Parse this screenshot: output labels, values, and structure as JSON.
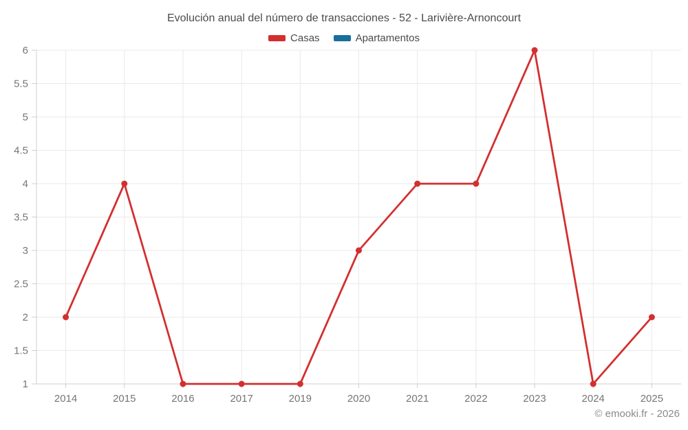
{
  "header": {
    "title": "Evolución anual del número de transacciones - 52 - Larivière-Arnoncourt"
  },
  "footer": {
    "credit": "© emooki.fr - 2026"
  },
  "colors": {
    "background": "#ffffff",
    "grid": "#e9e9e9",
    "axis": "#cfcfcf",
    "tick_label": "#757575",
    "title_text": "#4b4b4b",
    "legend_text": "#4b4b4b",
    "footer_text": "#8a8a8a",
    "casas": "#d32f2f",
    "apartamentos": "#1a6e9c"
  },
  "chart_data": {
    "type": "line",
    "title": "Evolución anual del número de transacciones - 52 - Larivière-Arnoncourt",
    "categories": [
      "2014",
      "2015",
      "2016",
      "2017",
      "2019",
      "2020",
      "2021",
      "2022",
      "2023",
      "2024",
      "2025"
    ],
    "series": [
      {
        "name": "Casas",
        "color": "#d32f2f",
        "values": [
          2,
          4,
          1,
          1,
          1,
          3,
          4,
          4,
          6,
          1,
          2
        ]
      },
      {
        "name": "Apartamentos",
        "color": "#1a6e9c",
        "values": []
      }
    ],
    "xlabel": "",
    "ylabel": "",
    "ylim": [
      1,
      6
    ],
    "y_ticks": [
      1,
      1.5,
      2,
      2.5,
      3,
      3.5,
      4,
      4.5,
      5,
      5.5,
      6
    ],
    "grid": true,
    "legend_position": "top",
    "marker_radius": 4.5,
    "line_width": 2.8
  }
}
